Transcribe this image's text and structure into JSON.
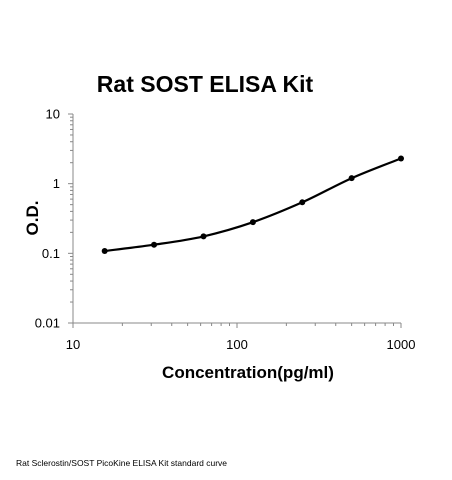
{
  "chart_data": {
    "type": "line",
    "title": "Rat SOST ELISA Kit",
    "xlabel": "Concentration(pg/ml)",
    "ylabel": "O.D.",
    "x_scale": "log",
    "y_scale": "log",
    "xlim": [
      10,
      1000
    ],
    "ylim": [
      0.01,
      10
    ],
    "x_ticks": [
      10,
      100,
      1000
    ],
    "x_tick_labels": [
      "10",
      "100",
      "1000"
    ],
    "y_ticks": [
      0.01,
      0.1,
      1,
      10
    ],
    "y_tick_labels": [
      "0.01",
      "0.1",
      "1",
      "10"
    ],
    "grid": false,
    "series": [
      {
        "x": [
          15.6,
          31.2,
          62.5,
          125,
          250,
          500,
          1000
        ],
        "values": [
          0.108,
          0.133,
          0.175,
          0.28,
          0.54,
          1.2,
          2.3
        ]
      }
    ]
  },
  "caption": "Rat Sclerostin/SOST PicoKine ELISA Kit standard curve"
}
